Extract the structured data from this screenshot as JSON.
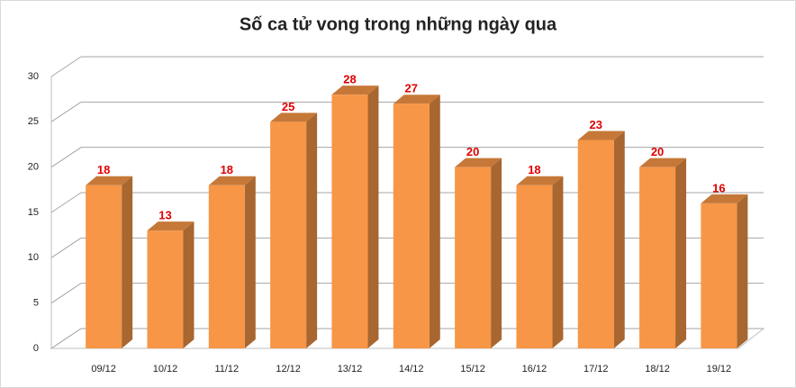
{
  "chart_data": {
    "type": "bar3d",
    "title": "Số ca tử vong trong những ngày qua",
    "categories": [
      "09/12",
      "10/12",
      "11/12",
      "12/12",
      "13/12",
      "14/12",
      "15/12",
      "16/12",
      "17/12",
      "18/12",
      "19/12"
    ],
    "values": [
      18,
      13,
      18,
      25,
      28,
      27,
      20,
      18,
      23,
      20,
      16
    ],
    "color": "#f79646",
    "label_color": "#e00000",
    "title_color": "#c00000",
    "ylim": [
      0,
      30
    ],
    "yticks": [
      0,
      5,
      10,
      15,
      20,
      25,
      30
    ],
    "grid": true
  }
}
